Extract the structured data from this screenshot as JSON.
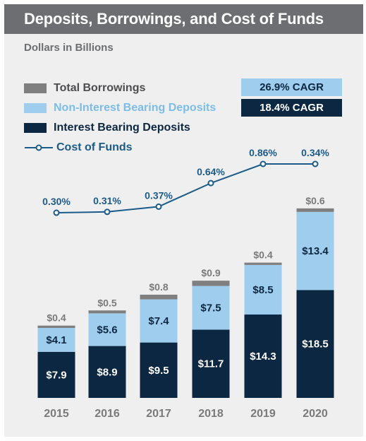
{
  "title": "Deposits, Borrowings, and Cost of Funds",
  "subtitle": "Dollars in Billions",
  "legend": {
    "borrowings": "Total Borrowings",
    "non_interest": "Non-Interest Bearing Deposits",
    "interest": "Interest Bearing Deposits",
    "cost_of_funds": "Cost of Funds"
  },
  "cagr": {
    "non_interest": "26.9% CAGR",
    "interest": "18.4% CAGR"
  },
  "colors": {
    "borrowings": "#7f7f7f",
    "non_interest": "#9fcdee",
    "interest": "#0b2742",
    "cost_line": "#1b5b8a",
    "label_gray": "#7a7a7a",
    "title_bg": "#6d6e71"
  },
  "chart_data": {
    "type": "bar",
    "stacked": true,
    "categories": [
      "2015",
      "2016",
      "2017",
      "2018",
      "2019",
      "2020"
    ],
    "series": [
      {
        "name": "Interest Bearing Deposits",
        "values": [
          7.9,
          8.9,
          9.5,
          11.7,
          14.3,
          18.5
        ],
        "labels": [
          "$7.9",
          "$8.9",
          "$9.5",
          "$11.7",
          "$14.3",
          "$18.5"
        ]
      },
      {
        "name": "Non-Interest Bearing Deposits",
        "values": [
          4.1,
          5.6,
          7.4,
          7.5,
          8.5,
          13.4
        ],
        "labels": [
          "$4.1",
          "$5.6",
          "$7.4",
          "$7.5",
          "$8.5",
          "$13.4"
        ]
      },
      {
        "name": "Total Borrowings",
        "values": [
          0.4,
          0.5,
          0.8,
          0.9,
          0.4,
          0.6
        ],
        "labels": [
          "$0.4",
          "$0.5",
          "$0.8",
          "$0.9",
          "$0.4",
          "$0.6"
        ]
      }
    ],
    "line_series": {
      "name": "Cost of Funds",
      "values": [
        0.3,
        0.31,
        0.37,
        0.64,
        0.86,
        0.34
      ],
      "labels": [
        "0.30%",
        "0.31%",
        "0.37%",
        "0.64%",
        "0.86%",
        "0.34%"
      ]
    },
    "title": "Deposits, Borrowings, and Cost of Funds",
    "ylabel": "Dollars in Billions",
    "grid": false,
    "legend_position": "top-left"
  }
}
